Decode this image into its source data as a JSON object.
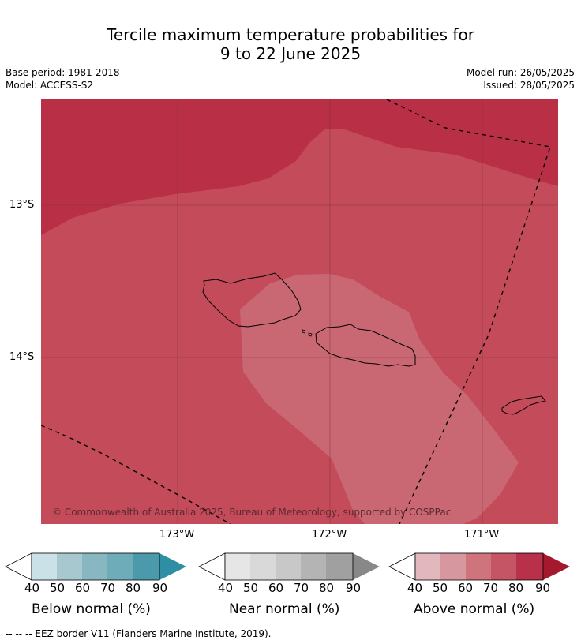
{
  "title": {
    "line1": "Tercile maximum temperature probabilities for",
    "line2": "9 to 22 June 2025"
  },
  "meta": {
    "base_period": "Base period: 1981-2018",
    "model": "Model: ACCESS-S2",
    "model_run": "Model run: 26/05/2025",
    "issued": "Issued: 28/05/2025"
  },
  "map": {
    "lat_labels": [
      "13°S",
      "14°S"
    ],
    "lon_labels": [
      "173°W",
      "172°W",
      "171°W"
    ],
    "copyright": "© Commonwealth of Australia 2025, Bureau of Meteorology, supported by COSPPac",
    "colors": {
      "above_80": "#b93046",
      "above_70": "#c44b59",
      "above_60": "#c96873",
      "land_outline": "#000000"
    }
  },
  "colorbars": [
    {
      "title": "Below normal (%)",
      "ticks": [
        "40",
        "50",
        "60",
        "70",
        "80",
        "90"
      ],
      "colors": [
        "#c9e1e7",
        "#a6c8ce",
        "#89b7c1",
        "#6eacba",
        "#4a9aab",
        "#2e8ea3"
      ]
    },
    {
      "title": "Near normal (%)",
      "ticks": [
        "40",
        "50",
        "60",
        "70",
        "80",
        "90"
      ],
      "colors": [
        "#e6e6e6",
        "#d9d9d9",
        "#c8c8c8",
        "#b4b4b4",
        "#a0a0a0",
        "#888888"
      ]
    },
    {
      "title": "Above normal (%)",
      "ticks": [
        "40",
        "50",
        "60",
        "70",
        "80",
        "90"
      ],
      "colors": [
        "#e2b8be",
        "#d6979f",
        "#cf737c",
        "#c55565",
        "#b8304a",
        "#a5182e"
      ]
    }
  ],
  "footer": "--  --  -- EEZ border V11 (Flanders Marine Institute, 2019)."
}
